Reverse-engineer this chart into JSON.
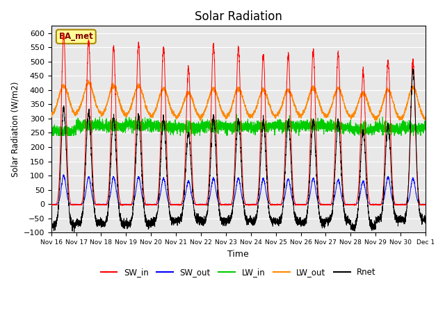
{
  "title": "Solar Radiation",
  "xlabel": "Time",
  "ylabel": "Solar Radiation (W/m2)",
  "ylim": [
    -100,
    625
  ],
  "yticks": [
    -100,
    -50,
    0,
    50,
    100,
    150,
    200,
    250,
    300,
    350,
    400,
    450,
    500,
    550,
    600
  ],
  "n_days": 15,
  "points_per_day": 288,
  "SW_in_peaks": [
    595,
    575,
    550,
    562,
    548,
    475,
    558,
    548,
    520,
    523,
    535,
    527,
    462,
    503,
    503
  ],
  "SW_out_peaks": [
    100,
    95,
    95,
    95,
    90,
    80,
    90,
    90,
    88,
    88,
    90,
    85,
    80,
    95,
    90
  ],
  "LW_in_base": [
    253,
    278,
    272,
    278,
    272,
    267,
    272,
    270,
    272,
    274,
    277,
    272,
    262,
    267,
    267
  ],
  "LW_out_base": [
    307,
    315,
    307,
    307,
    302,
    298,
    302,
    300,
    302,
    305,
    307,
    302,
    298,
    293,
    293
  ],
  "LW_out_peaks": [
    415,
    425,
    415,
    415,
    405,
    390,
    405,
    405,
    400,
    400,
    407,
    405,
    390,
    400,
    410
  ],
  "Rnet_peaks": [
    335,
    320,
    302,
    308,
    298,
    248,
    302,
    298,
    288,
    288,
    292,
    288,
    258,
    278,
    468
  ],
  "Rnet_night": [
    -75,
    -65,
    -70,
    -70,
    -60,
    -55,
    -60,
    -58,
    -60,
    -62,
    -65,
    -60,
    -80,
    -55,
    -55
  ],
  "colors": {
    "SW_in": "#ff0000",
    "SW_out": "#0000ff",
    "LW_in": "#00cc00",
    "LW_out": "#ff8800",
    "Rnet": "#000000"
  },
  "legend_labels": [
    "SW_in",
    "SW_out",
    "LW_in",
    "LW_out",
    "Rnet"
  ],
  "station_label": "BA_met",
  "plot_background": "#e8e8e8"
}
